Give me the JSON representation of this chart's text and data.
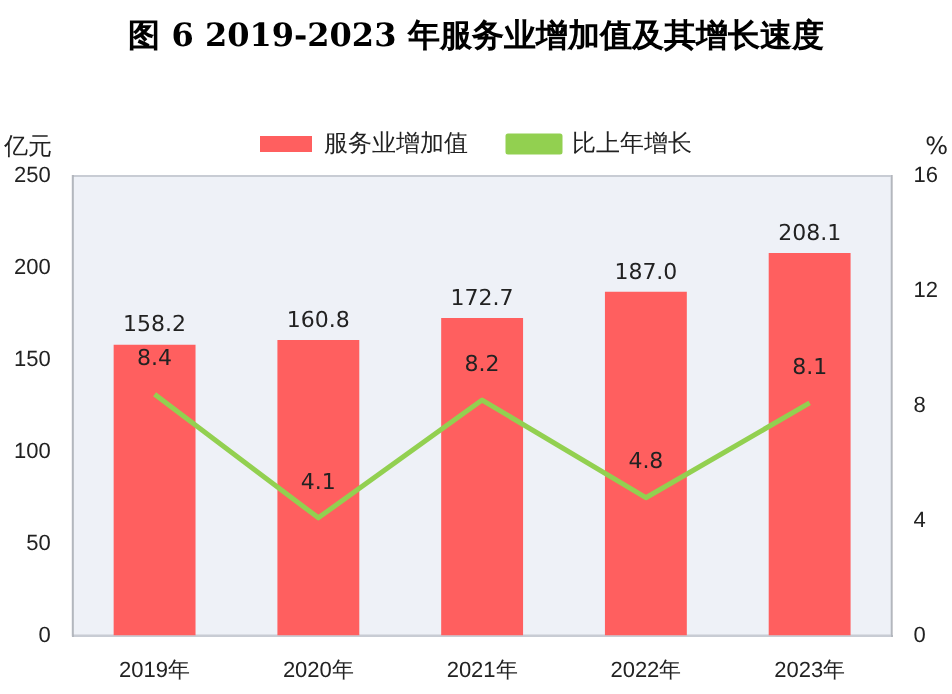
{
  "chart_data": {
    "type": "bar",
    "title": "图 6 2019-2023 年服务业增加值及其增长速度",
    "ylabel": "亿元",
    "y2label": "%",
    "categories": [
      "2019年",
      "2020年",
      "2021年",
      "2022年",
      "2023年"
    ],
    "series": [
      {
        "name": "服务业增加值",
        "color": "#ff5f5f",
        "values": [
          158.2,
          160.8,
          172.7,
          187.0,
          208.1
        ],
        "value_labels": [
          "158.2",
          "160.8",
          "172.7",
          "187.0",
          "208.1"
        ]
      },
      {
        "name": "比上年增长",
        "type": "line",
        "axis": "y2",
        "color": "#92d050",
        "values": [
          8.4,
          4.1,
          8.2,
          4.8,
          8.1
        ],
        "value_labels": [
          "8.4",
          "4.1",
          "8.2",
          "4.8",
          "8.1"
        ]
      }
    ],
    "ylim": [
      0,
      250
    ],
    "yticks": [
      0,
      50,
      100,
      150,
      200,
      250
    ],
    "y2lim": [
      0,
      16
    ],
    "y2ticks": [
      0,
      4,
      8,
      12,
      16
    ],
    "grid": false,
    "legend": "top",
    "marker": "none"
  }
}
